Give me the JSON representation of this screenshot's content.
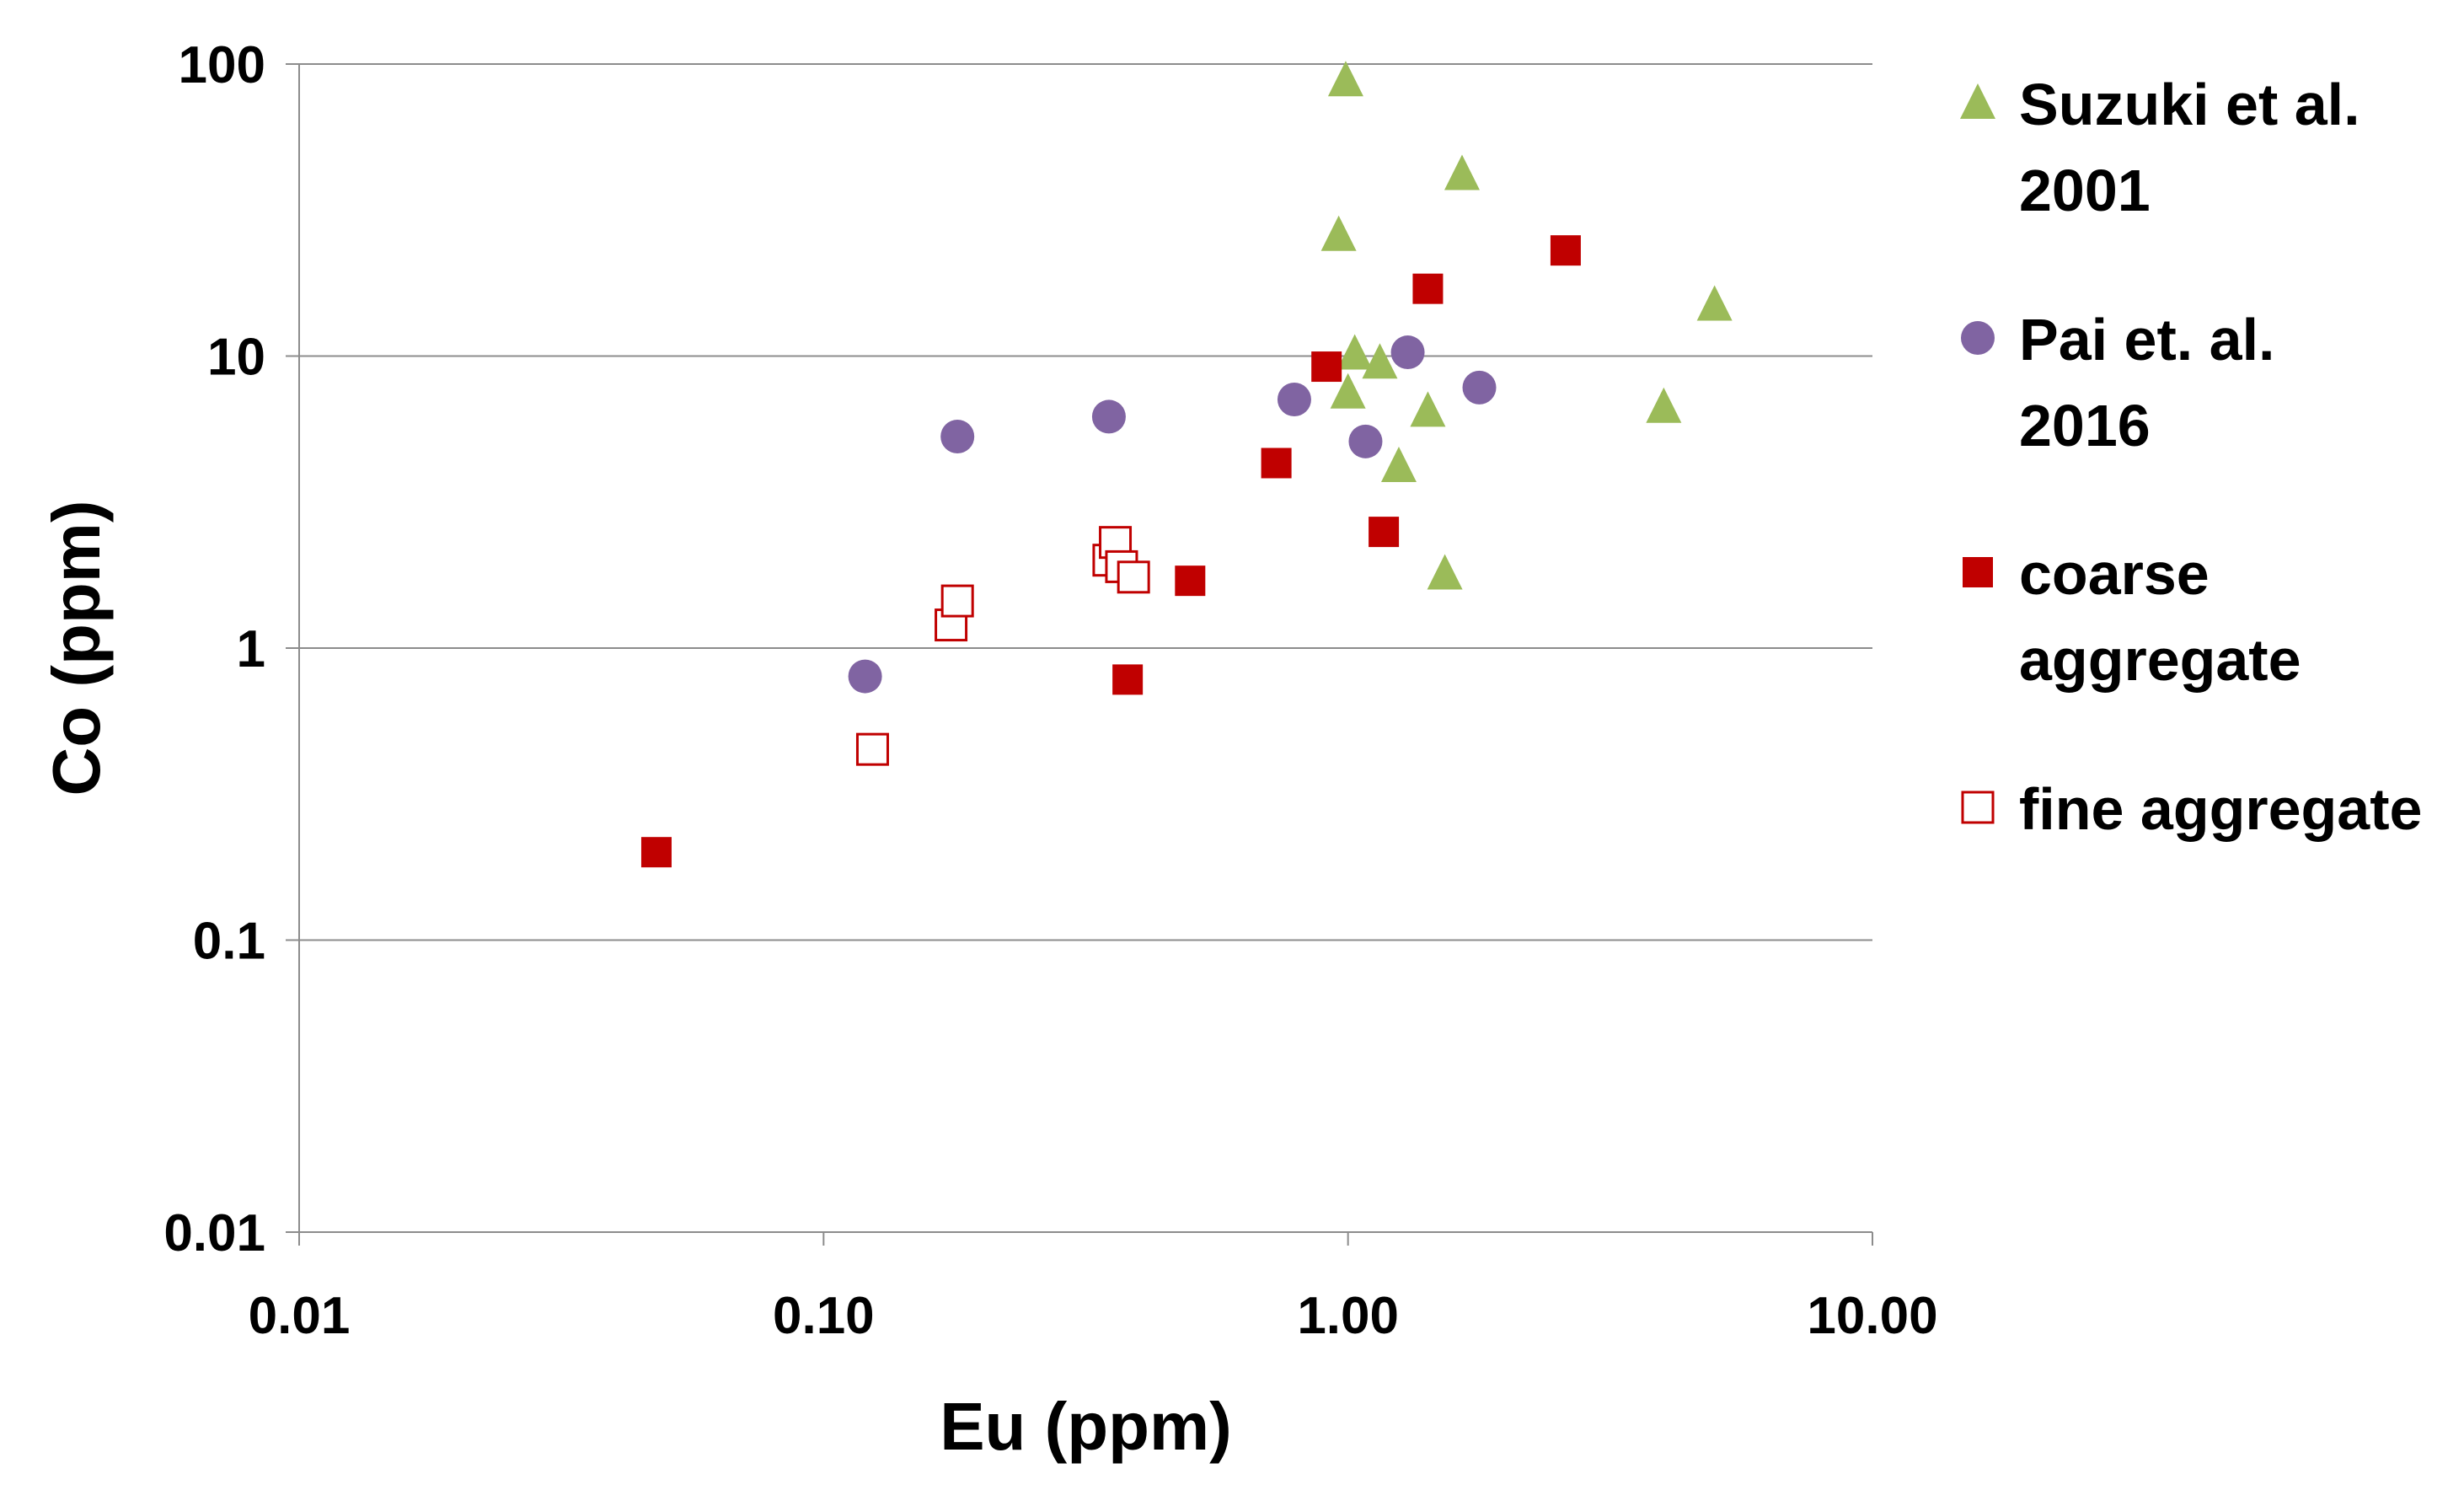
{
  "chart_data": {
    "type": "scatter",
    "title": "",
    "xlabel": "Eu (ppm)",
    "ylabel": "Co (ppm)",
    "xscale": "log",
    "yscale": "log",
    "xlim": [
      0.01,
      10
    ],
    "ylim": [
      0.01,
      100
    ],
    "x_ticks": [
      0.01,
      0.1,
      1,
      10
    ],
    "x_tick_labels": [
      "0.01",
      "0.10",
      "1.00",
      "10.00"
    ],
    "y_ticks": [
      0.01,
      0.1,
      1,
      10,
      100
    ],
    "y_tick_labels": [
      "0.01",
      "0.1",
      "1",
      "10",
      "100"
    ],
    "grid": "horizontal",
    "legend_position": "right",
    "series": [
      {
        "name": "Suzuki et al. 2001",
        "legend_lines": [
          "Suzuki et al.",
          "2001"
        ],
        "marker": "triangle",
        "color": "#9BBB59",
        "points": [
          [
            0.99,
            88
          ],
          [
            1.65,
            42
          ],
          [
            0.96,
            26
          ],
          [
            1.03,
            10.2
          ],
          [
            1.15,
            9.5
          ],
          [
            1.0,
            7.5
          ],
          [
            1.42,
            6.5
          ],
          [
            1.25,
            4.2
          ],
          [
            1.53,
            1.8
          ],
          [
            4.0,
            6.7
          ],
          [
            5.0,
            15
          ]
        ]
      },
      {
        "name": "Pai et. al. 2016",
        "legend_lines": [
          "Pai et. al.",
          "2016"
        ],
        "marker": "circle",
        "color": "#8064A2",
        "points": [
          [
            0.12,
            0.8
          ],
          [
            0.18,
            5.3
          ],
          [
            0.35,
            6.2
          ],
          [
            0.79,
            7.1
          ],
          [
            1.08,
            5.1
          ],
          [
            1.3,
            10.3
          ],
          [
            1.78,
            7.8
          ]
        ]
      },
      {
        "name": "coarse aggregate",
        "legend_lines": [
          "coarse",
          "aggregate"
        ],
        "marker": "square-filled",
        "color": "#C00000",
        "points": [
          [
            0.048,
            0.2
          ],
          [
            0.38,
            0.78
          ],
          [
            0.5,
            1.7
          ],
          [
            0.73,
            4.3
          ],
          [
            0.91,
            9.2
          ],
          [
            1.17,
            2.5
          ],
          [
            1.42,
            17
          ],
          [
            2.6,
            23
          ]
        ]
      },
      {
        "name": "fine aggregate",
        "legend_lines": [
          "fine aggregate"
        ],
        "marker": "square-open",
        "color": "#C00000",
        "points": [
          [
            0.124,
            0.45
          ],
          [
            0.175,
            1.2
          ],
          [
            0.18,
            1.45
          ],
          [
            0.35,
            2.0
          ],
          [
            0.36,
            2.3
          ],
          [
            0.37,
            1.9
          ],
          [
            0.39,
            1.75
          ]
        ]
      }
    ]
  }
}
